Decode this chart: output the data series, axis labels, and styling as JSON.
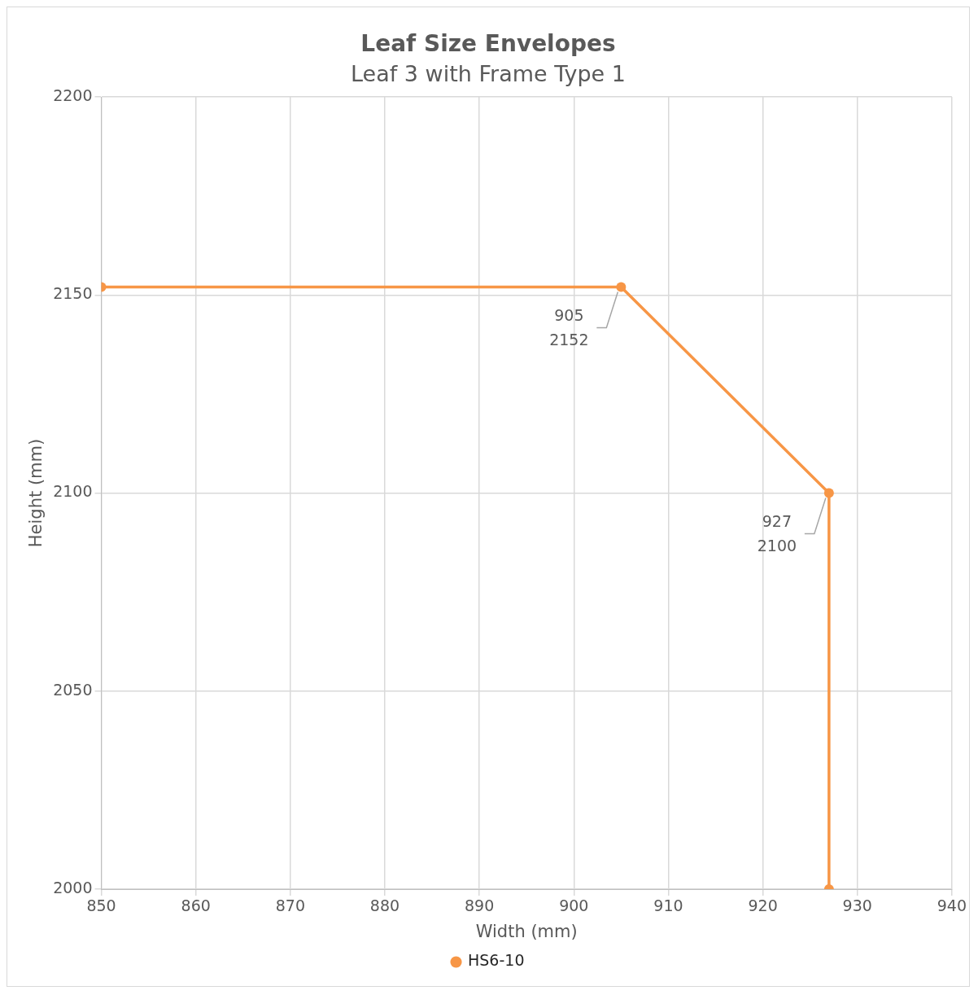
{
  "chart_data": {
    "type": "line",
    "title": "Leaf Size Envelopes",
    "subtitle": "Leaf 3 with Frame Type 1",
    "xlabel": "Width (mm)",
    "ylabel": "Height (mm)",
    "x": [
      850,
      905,
      927,
      927
    ],
    "series": [
      {
        "name": "HS6-10",
        "color": "#f79646",
        "values": [
          2152,
          2152,
          2100,
          2000
        ],
        "value_labels": [
          null,
          "905\n2152",
          "927\n2100",
          null
        ]
      }
    ],
    "xlim": [
      850,
      940
    ],
    "xticks": [
      850,
      860,
      870,
      880,
      890,
      900,
      910,
      920,
      930,
      940
    ],
    "ylim": [
      2000,
      2200
    ],
    "yticks": [
      2000,
      2050,
      2100,
      2150,
      2200
    ],
    "grid": true,
    "legend": "bottom",
    "marker": "circle",
    "line_style": "solid"
  }
}
